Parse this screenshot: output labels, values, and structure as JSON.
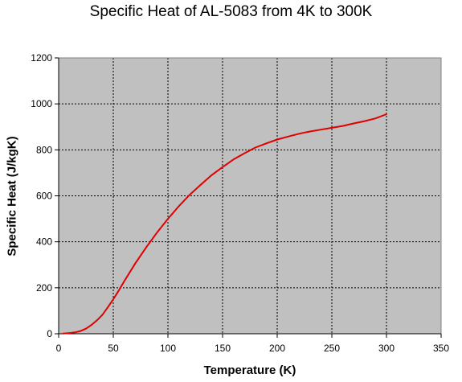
{
  "chart_data": {
    "type": "line",
    "title": "Specific Heat of AL-5083 from 4K to 300K",
    "xlabel": "Temperature (K)",
    "ylabel": "Specific Heat (J/kgK)",
    "xlim": [
      0,
      350
    ],
    "ylim": [
      0,
      1200
    ],
    "xticks": [
      0,
      50,
      100,
      150,
      200,
      250,
      300,
      350
    ],
    "yticks": [
      0,
      200,
      400,
      600,
      800,
      1000,
      1200
    ],
    "grid": true,
    "legend": "none",
    "colors": {
      "plot_background": "#c0c0c0",
      "line": "#e00000",
      "grid": "#000000"
    },
    "series": [
      {
        "x": [
          4,
          10,
          15,
          20,
          25,
          30,
          35,
          40,
          45,
          50,
          55,
          60,
          70,
          80,
          90,
          100,
          110,
          120,
          130,
          140,
          150,
          160,
          170,
          180,
          190,
          200,
          210,
          220,
          230,
          240,
          250,
          260,
          270,
          280,
          290,
          300
        ],
        "y": [
          1,
          3,
          6,
          12,
          22,
          38,
          58,
          82,
          115,
          150,
          188,
          228,
          305,
          375,
          440,
          500,
          555,
          605,
          648,
          690,
          725,
          758,
          785,
          810,
          828,
          845,
          858,
          870,
          880,
          888,
          896,
          904,
          915,
          925,
          937,
          955
        ]
      }
    ]
  }
}
